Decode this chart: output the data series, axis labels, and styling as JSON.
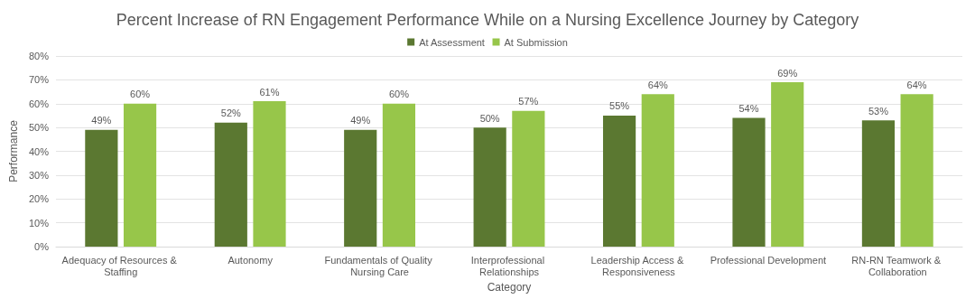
{
  "chart_data": {
    "type": "bar",
    "title": "Percent Increase of RN Engagement Performance While on a Nursing Excellence Journey by Category",
    "xlabel": "Category",
    "ylabel": "Performance",
    "categories": [
      "Adequacy of Resources & Staffing",
      "Autonomy",
      "Fundamentals of Quality Nursing Care",
      "Interprofessional Relationships",
      "Leadership Access & Responsiveness",
      "Professional Development",
      "RN-RN Teamwork & Collaboration"
    ],
    "series": [
      {
        "name": "At Assessment",
        "color": "#5b7831",
        "values": [
          49,
          52,
          49,
          50,
          55,
          54,
          53
        ],
        "value_labels": [
          "49%",
          "52%",
          "49%",
          "50%",
          "55%",
          "54%",
          "53%"
        ]
      },
      {
        "name": "At Submission",
        "color": "#97c64a",
        "values": [
          60,
          61,
          60,
          57,
          64,
          69,
          64
        ],
        "value_labels": [
          "60%",
          "61%",
          "60%",
          "57%",
          "64%",
          "69%",
          "64%"
        ]
      }
    ],
    "ylim": [
      0,
      80
    ],
    "yticks": [
      {
        "value": 0,
        "label": "0%"
      },
      {
        "value": 10,
        "label": "10%"
      },
      {
        "value": 20,
        "label": "20%"
      },
      {
        "value": 30,
        "label": "30%"
      },
      {
        "value": 40,
        "label": "40%"
      },
      {
        "value": 50,
        "label": "50%"
      },
      {
        "value": 60,
        "label": "60%"
      },
      {
        "value": 70,
        "label": "70%"
      },
      {
        "value": 80,
        "label": "80%"
      }
    ],
    "grid": "y",
    "legend": "top"
  }
}
